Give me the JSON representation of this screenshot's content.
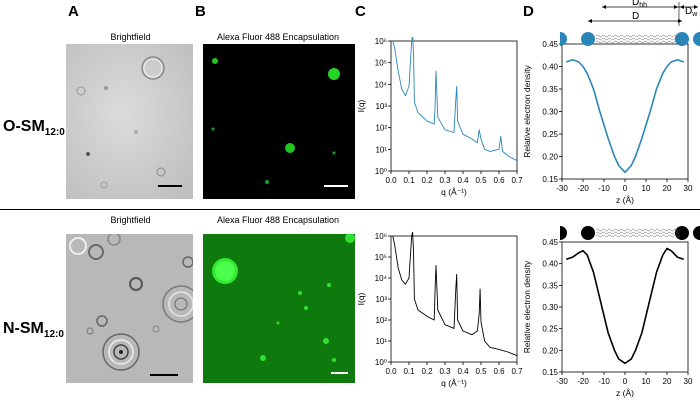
{
  "panels": {
    "A": "A",
    "B": "B",
    "C": "C",
    "D": "D"
  },
  "rows": [
    {
      "label_main": "O-SM",
      "label_sub": "12:0"
    },
    {
      "label_main": "N-SM",
      "label_sub": "12:0"
    }
  ],
  "captions": {
    "brightfield": "Brightfield",
    "fluorescence": "Alexa Fluor 488 Encapsulation"
  },
  "colors": {
    "row1_series": "#2a86b8",
    "row2_series": "#000000",
    "fluor_green": "#1fc41f"
  },
  "diagram": {
    "dhh": "D",
    "dhh_sub": "hh",
    "dw": "D",
    "dw_sub": "w",
    "d": "D"
  },
  "chart_data": [
    {
      "type": "line",
      "panel": "C-top",
      "xlabel": "q (Å⁻¹)",
      "ylabel": "I(q)",
      "xlim": [
        0,
        0.7
      ],
      "ylim": [
        1,
        1000000
      ],
      "yscale": "log",
      "xticks": [
        "0.0",
        "0.1",
        "0.2",
        "0.3",
        "0.4",
        "0.5",
        "0.6",
        "0.7"
      ],
      "yticks": [
        "10⁰",
        "10¹",
        "10²",
        "10³",
        "10⁴",
        "10⁵",
        "10⁶"
      ],
      "series": [
        {
          "x": [
            0.01,
            0.02,
            0.04,
            0.06,
            0.08,
            0.1,
            0.115,
            0.12,
            0.125,
            0.13,
            0.15,
            0.2,
            0.24,
            0.245,
            0.25,
            0.26,
            0.3,
            0.35,
            0.36,
            0.365,
            0.37,
            0.4,
            0.45,
            0.48,
            0.49,
            0.5,
            0.52,
            0.55,
            0.6,
            0.61,
            0.62,
            0.65,
            0.7
          ],
          "y": [
            1000000,
            500000,
            40000,
            6000,
            3000,
            8000,
            1000000,
            2000000,
            300000,
            1500,
            500,
            200,
            150,
            1000,
            40000,
            300,
            80,
            60,
            2000,
            8000,
            200,
            50,
            30,
            20,
            80,
            30,
            10,
            8,
            10,
            40,
            8,
            5,
            3
          ]
        }
      ]
    },
    {
      "type": "line",
      "panel": "D-top",
      "xlabel": "z (Å)",
      "ylabel": "Relative electron density",
      "xlim": [
        -30,
        30
      ],
      "ylim": [
        0.15,
        0.45
      ],
      "xticks": [
        "-30",
        "-20",
        "-10",
        "0",
        "10",
        "20",
        "30"
      ],
      "yticks": [
        "0.15",
        "0.20",
        "0.25",
        "0.30",
        "0.35",
        "0.40",
        "0.45"
      ],
      "series": [
        {
          "x": [
            -28,
            -25,
            -22,
            -20,
            -18,
            -15,
            -12,
            -10,
            -8,
            -5,
            -3,
            0,
            3,
            5,
            8,
            10,
            12,
            15,
            18,
            20,
            22,
            25,
            28
          ],
          "y": [
            0.41,
            0.415,
            0.41,
            0.4,
            0.385,
            0.35,
            0.3,
            0.27,
            0.24,
            0.2,
            0.18,
            0.165,
            0.18,
            0.2,
            0.24,
            0.27,
            0.3,
            0.35,
            0.385,
            0.4,
            0.41,
            0.415,
            0.41
          ]
        }
      ]
    },
    {
      "type": "line",
      "panel": "C-bottom",
      "xlabel": "q (Å⁻¹)",
      "ylabel": "I(q)",
      "xlim": [
        0,
        0.7
      ],
      "ylim": [
        1,
        1000000
      ],
      "yscale": "log",
      "xticks": [
        "0.0",
        "0.1",
        "0.2",
        "0.3",
        "0.4",
        "0.5",
        "0.6",
        "0.7"
      ],
      "yticks": [
        "10⁰",
        "10¹",
        "10²",
        "10³",
        "10⁴",
        "10⁵",
        "10⁶"
      ],
      "series": [
        {
          "x": [
            0.01,
            0.02,
            0.04,
            0.06,
            0.08,
            0.1,
            0.115,
            0.12,
            0.125,
            0.13,
            0.15,
            0.2,
            0.24,
            0.245,
            0.25,
            0.26,
            0.3,
            0.35,
            0.36,
            0.365,
            0.37,
            0.4,
            0.45,
            0.48,
            0.49,
            0.495,
            0.5,
            0.52,
            0.55,
            0.6,
            0.65,
            0.7
          ],
          "y": [
            1000000,
            400000,
            30000,
            8000,
            5000,
            10000,
            1000000,
            1500000,
            200000,
            1000,
            300,
            150,
            100,
            3000,
            40000,
            300,
            60,
            40,
            3000,
            15000,
            100,
            30,
            20,
            30,
            200,
            3000,
            80,
            10,
            5,
            4,
            3,
            2
          ]
        }
      ]
    },
    {
      "type": "line",
      "panel": "D-bottom",
      "xlabel": "z (Å)",
      "ylabel": "Relative electron density",
      "xlim": [
        -30,
        30
      ],
      "ylim": [
        0.15,
        0.45
      ],
      "xticks": [
        "-30",
        "-20",
        "-10",
        "0",
        "10",
        "20",
        "30"
      ],
      "yticks": [
        "0.15",
        "0.20",
        "0.25",
        "0.30",
        "0.35",
        "0.40",
        "0.45"
      ],
      "series": [
        {
          "x": [
            -28,
            -25,
            -22,
            -20,
            -18,
            -15,
            -12,
            -10,
            -8,
            -5,
            -3,
            0,
            3,
            5,
            8,
            10,
            12,
            15,
            18,
            20,
            22,
            25,
            28
          ],
          "y": [
            0.41,
            0.415,
            0.425,
            0.43,
            0.42,
            0.38,
            0.32,
            0.28,
            0.24,
            0.2,
            0.18,
            0.17,
            0.18,
            0.2,
            0.24,
            0.28,
            0.32,
            0.38,
            0.42,
            0.435,
            0.43,
            0.415,
            0.41
          ]
        }
      ]
    }
  ]
}
